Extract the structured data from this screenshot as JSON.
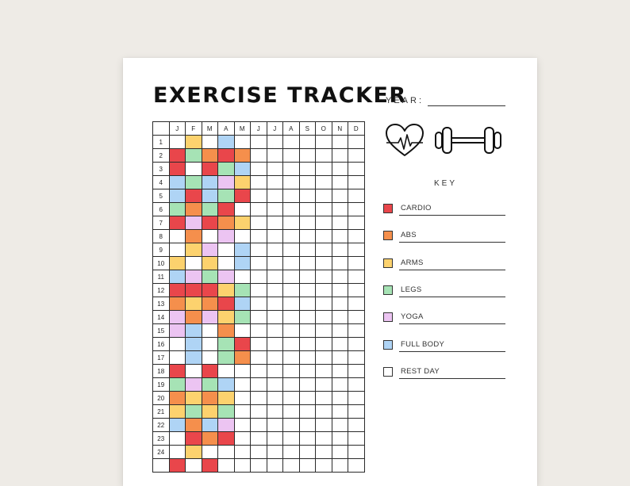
{
  "title": "EXERCISE TRACKER",
  "year_label": "YEAR:",
  "months": [
    "J",
    "F",
    "M",
    "A",
    "M",
    "J",
    "J",
    "A",
    "S",
    "O",
    "N",
    "D"
  ],
  "days": [
    "1",
    "2",
    "3",
    "4",
    "5",
    "6",
    "7",
    "8",
    "9",
    "10",
    "11",
    "12",
    "13",
    "14",
    "15",
    "16",
    "17",
    "18",
    "19",
    "20",
    "21",
    "22",
    "23",
    "24",
    ""
  ],
  "key_title": "KEY",
  "key": [
    {
      "id": "cardio",
      "label": "CARDIO",
      "color": "#e9464b"
    },
    {
      "id": "abs",
      "label": "ABS",
      "color": "#f58f4c"
    },
    {
      "id": "arms",
      "label": "ARMS",
      "color": "#fcd26e"
    },
    {
      "id": "legs",
      "label": "LEGS",
      "color": "#a6e3b5"
    },
    {
      "id": "yoga",
      "label": "YOGA",
      "color": "#ecc4f2"
    },
    {
      "id": "full-body",
      "label": "FULL BODY",
      "color": "#afd4f5"
    },
    {
      "id": "rest-day",
      "label": "REST DAY",
      "color": "#ffffff"
    }
  ],
  "icons": [
    "heart-rate-icon",
    "dumbbell-icon"
  ],
  "log": [
    [
      "",
      "arms",
      "",
      "full-body",
      "",
      "",
      "",
      "",
      "",
      "",
      "",
      ""
    ],
    [
      "cardio",
      "legs",
      "abs",
      "cardio",
      "abs",
      "",
      "",
      "",
      "",
      "",
      "",
      ""
    ],
    [
      "cardio",
      "",
      "cardio",
      "legs",
      "full-body",
      "",
      "",
      "",
      "",
      "",
      "",
      ""
    ],
    [
      "full-body",
      "legs",
      "full-body",
      "yoga",
      "arms",
      "",
      "",
      "",
      "",
      "",
      "",
      ""
    ],
    [
      "full-body",
      "cardio",
      "full-body",
      "legs",
      "cardio",
      "",
      "",
      "",
      "",
      "",
      "",
      ""
    ],
    [
      "legs",
      "abs",
      "legs",
      "cardio",
      "",
      "",
      "",
      "",
      "",
      "",
      "",
      ""
    ],
    [
      "cardio",
      "yoga",
      "cardio",
      "abs",
      "arms",
      "",
      "",
      "",
      "",
      "",
      "",
      ""
    ],
    [
      "",
      "abs",
      "",
      "yoga",
      "",
      "",
      "",
      "",
      "",
      "",
      "",
      ""
    ],
    [
      "",
      "arms",
      "yoga",
      "",
      "full-body",
      "",
      "",
      "",
      "",
      "",
      "",
      ""
    ],
    [
      "arms",
      "",
      "arms",
      "",
      "full-body",
      "",
      "",
      "",
      "",
      "",
      "",
      ""
    ],
    [
      "full-body",
      "yoga",
      "legs",
      "yoga",
      "",
      "",
      "",
      "",
      "",
      "",
      "",
      ""
    ],
    [
      "cardio",
      "cardio",
      "cardio",
      "arms",
      "legs",
      "",
      "",
      "",
      "",
      "",
      "",
      ""
    ],
    [
      "abs",
      "arms",
      "abs",
      "cardio",
      "full-body",
      "",
      "",
      "",
      "",
      "",
      "",
      ""
    ],
    [
      "yoga",
      "abs",
      "yoga",
      "arms",
      "legs",
      "",
      "",
      "",
      "",
      "",
      "",
      ""
    ],
    [
      "yoga",
      "full-body",
      "",
      "abs",
      "",
      "",
      "",
      "",
      "",
      "",
      "",
      ""
    ],
    [
      "",
      "full-body",
      "",
      "legs",
      "cardio",
      "",
      "",
      "",
      "",
      "",
      "",
      ""
    ],
    [
      "",
      "full-body",
      "",
      "legs",
      "abs",
      "",
      "",
      "",
      "",
      "",
      "",
      ""
    ],
    [
      "cardio",
      "",
      "cardio",
      "",
      "",
      "",
      "",
      "",
      "",
      "",
      "",
      ""
    ],
    [
      "legs",
      "yoga",
      "legs",
      "full-body",
      "",
      "",
      "",
      "",
      "",
      "",
      "",
      ""
    ],
    [
      "abs",
      "arms",
      "abs",
      "arms",
      "",
      "",
      "",
      "",
      "",
      "",
      "",
      ""
    ],
    [
      "arms",
      "legs",
      "arms",
      "legs",
      "",
      "",
      "",
      "",
      "",
      "",
      "",
      ""
    ],
    [
      "full-body",
      "abs",
      "full-body",
      "yoga",
      "",
      "",
      "",
      "",
      "",
      "",
      "",
      ""
    ],
    [
      "",
      "cardio",
      "abs",
      "cardio",
      "",
      "",
      "",
      "",
      "",
      "",
      "",
      ""
    ],
    [
      "",
      "arms",
      "",
      "",
      "",
      "",
      "",
      "",
      "",
      "",
      "",
      ""
    ],
    [
      "cardio",
      "",
      "cardio",
      "",
      "",
      "",
      "",
      "",
      "",
      "",
      "",
      ""
    ]
  ]
}
